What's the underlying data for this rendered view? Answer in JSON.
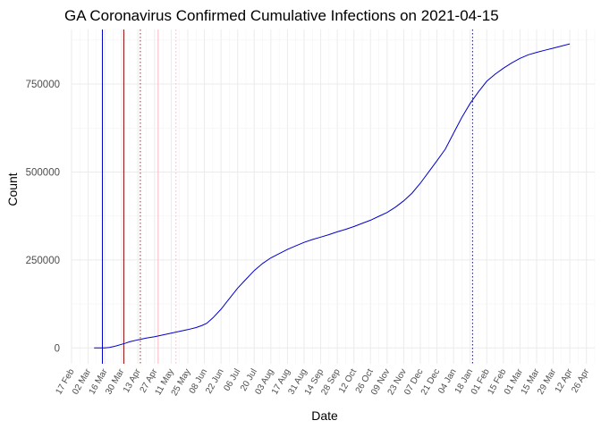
{
  "chart_data": {
    "type": "line",
    "title": "GA Coronavirus Confirmed Cumulative Infections on 2021-04-15",
    "xlabel": "Date",
    "ylabel": "Count",
    "y_ticks": [
      0,
      250000,
      500000,
      750000
    ],
    "y_tick_labels": [
      "0",
      "250000",
      "500000",
      "750000"
    ],
    "ylim": [
      -45000,
      905000
    ],
    "x_range_days": [
      0,
      441
    ],
    "x_tick_days": [
      0,
      14,
      28,
      42,
      56,
      70,
      84,
      98,
      112,
      126,
      140,
      154,
      168,
      182,
      196,
      210,
      224,
      238,
      252,
      266,
      280,
      294,
      308,
      322,
      336,
      350,
      364,
      378,
      392,
      406,
      420,
      434
    ],
    "x_tick_labels": [
      "17 Feb",
      "02 Mar",
      "16 Mar",
      "30 Mar",
      "13 Apr",
      "27 Apr",
      "11 May",
      "25 May",
      "08 Jun",
      "22 Jun",
      "06 Jul",
      "20 Jul",
      "03 Aug",
      "17 Aug",
      "31 Aug",
      "14 Sep",
      "28 Sep",
      "12 Oct",
      "26 Oct",
      "09 Nov",
      "23 Nov",
      "07 Dec",
      "21 Dec",
      "04 Jan",
      "18 Jan",
      "01 Feb",
      "15 Feb",
      "01 Mar",
      "15 Mar",
      "29 Mar",
      "12 Apr",
      "26 Apr"
    ],
    "grid": true,
    "series": [
      {
        "color": "#0000cd",
        "points": [
          [
            19,
            0
          ],
          [
            25,
            60
          ],
          [
            28,
            300
          ],
          [
            32,
            1200
          ],
          [
            35,
            3500
          ],
          [
            38,
            6000
          ],
          [
            42,
            10000
          ],
          [
            45,
            13000
          ],
          [
            49,
            17500
          ],
          [
            56,
            23000
          ],
          [
            63,
            28000
          ],
          [
            70,
            32000
          ],
          [
            77,
            37000
          ],
          [
            84,
            42000
          ],
          [
            91,
            47000
          ],
          [
            98,
            52000
          ],
          [
            105,
            58000
          ],
          [
            110,
            64000
          ],
          [
            114,
            70000
          ],
          [
            119,
            85000
          ],
          [
            126,
            110000
          ],
          [
            133,
            140000
          ],
          [
            140,
            170000
          ],
          [
            147,
            195000
          ],
          [
            154,
            220000
          ],
          [
            161,
            240000
          ],
          [
            168,
            256000
          ],
          [
            175,
            268000
          ],
          [
            182,
            280000
          ],
          [
            189,
            290000
          ],
          [
            196,
            300000
          ],
          [
            203,
            308000
          ],
          [
            210,
            315000
          ],
          [
            217,
            322000
          ],
          [
            224,
            330000
          ],
          [
            231,
            337000
          ],
          [
            238,
            345000
          ],
          [
            245,
            354000
          ],
          [
            252,
            363000
          ],
          [
            259,
            374000
          ],
          [
            266,
            385000
          ],
          [
            273,
            400000
          ],
          [
            280,
            418000
          ],
          [
            287,
            440000
          ],
          [
            294,
            468000
          ],
          [
            301,
            500000
          ],
          [
            308,
            532000
          ],
          [
            315,
            565000
          ],
          [
            322,
            610000
          ],
          [
            329,
            655000
          ],
          [
            336,
            695000
          ],
          [
            343,
            728000
          ],
          [
            350,
            758000
          ],
          [
            357,
            778000
          ],
          [
            364,
            795000
          ],
          [
            371,
            810000
          ],
          [
            378,
            823000
          ],
          [
            385,
            833000
          ],
          [
            392,
            840000
          ],
          [
            399,
            846000
          ],
          [
            406,
            852000
          ],
          [
            413,
            858000
          ],
          [
            420,
            864000
          ]
        ]
      }
    ],
    "reference_lines": [
      {
        "day": 26,
        "color": "#0000cd",
        "style": "solid"
      },
      {
        "day": 44,
        "color": "#8b0000",
        "style": "solid"
      },
      {
        "day": 58,
        "color": "#b22222",
        "style": "dotted"
      },
      {
        "day": 73,
        "color": "#ffb6c1",
        "style": "solid"
      },
      {
        "day": 88,
        "color": "#ffb6c1",
        "style": "dotted"
      },
      {
        "day": 338,
        "color": "#0000cd",
        "style": "dotted"
      }
    ]
  }
}
